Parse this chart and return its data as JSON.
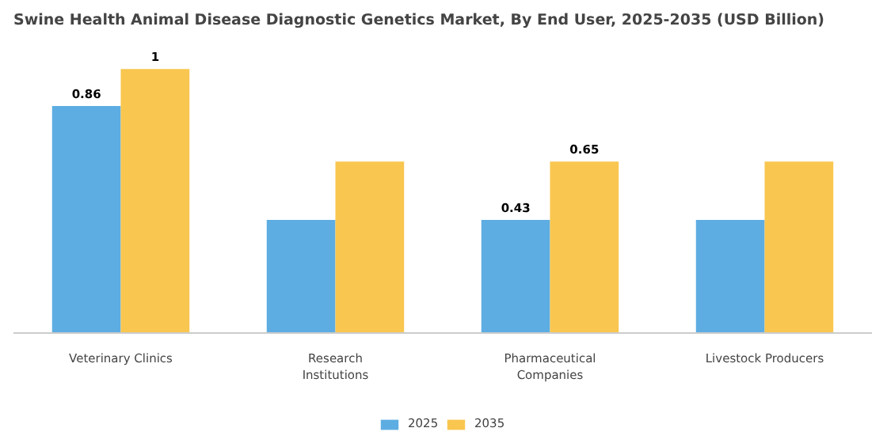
{
  "chart_data": {
    "type": "bar",
    "title": "Swine Health Animal Disease Diagnostic Genetics Market, By End User, 2025-2035 (USD Billion)",
    "categories": [
      "Veterinary Clinics",
      "Research Institutions",
      "Pharmaceutical Companies",
      "Livestock Producers"
    ],
    "series": [
      {
        "name": "2025",
        "color": "#5dade2",
        "values": [
          0.86,
          0.43,
          0.43,
          0.43
        ],
        "value_labels": [
          "0.86",
          null,
          "0.43",
          null
        ]
      },
      {
        "name": "2035",
        "color": "#f9c64f",
        "values": [
          1,
          0.65,
          0.65,
          0.65
        ],
        "value_labels": [
          "1",
          null,
          "0.65",
          null
        ]
      }
    ],
    "legend": "bottom"
  }
}
